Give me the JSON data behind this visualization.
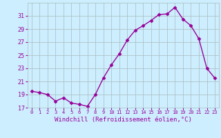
{
  "x": [
    0,
    1,
    2,
    3,
    4,
    5,
    6,
    7,
    8,
    9,
    10,
    11,
    12,
    13,
    14,
    15,
    16,
    17,
    18,
    19,
    20,
    21,
    22,
    23
  ],
  "y": [
    19.5,
    19.3,
    19.0,
    18.0,
    18.5,
    17.7,
    17.5,
    17.2,
    19.0,
    21.5,
    23.5,
    25.2,
    27.3,
    28.8,
    29.5,
    30.3,
    31.2,
    31.3,
    32.3,
    30.5,
    29.5,
    27.5,
    23.0,
    21.5
  ],
  "line_color": "#990099",
  "marker": "D",
  "marker_size": 2.5,
  "bg_color": "#cceeff",
  "grid_color": "#aabbbb",
  "xlabel": "Windchill (Refroidissement éolien,°C)",
  "ylim": [
    17,
    33
  ],
  "xlim": [
    -0.5,
    23.5
  ],
  "yticks": [
    17,
    19,
    21,
    23,
    25,
    27,
    29,
    31
  ],
  "tick_color": "#990099",
  "label_color": "#990099",
  "grid_linewidth": 0.5,
  "line_width": 1.0
}
